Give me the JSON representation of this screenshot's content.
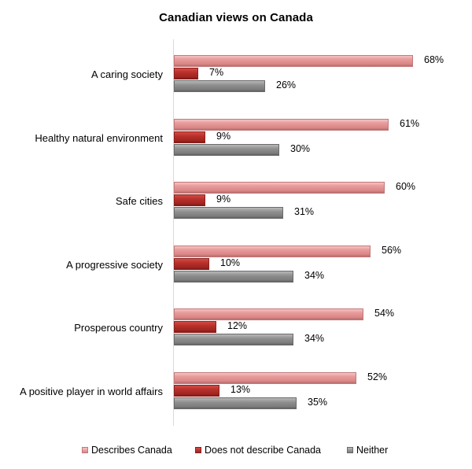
{
  "chart_data": {
    "type": "bar",
    "orientation": "horizontal",
    "title": "Canadian views on Canada",
    "xlabel": "",
    "ylabel": "",
    "xlim": [
      0,
      100
    ],
    "grid": false,
    "legend_position": "bottom",
    "categories": [
      "A caring society",
      "Healthy natural environment",
      "Safe cities",
      "A progressive society",
      "Prosperous country",
      "A positive player in world affairs"
    ],
    "series": [
      {
        "name": "Describes Canada",
        "color": "#e89a9a",
        "values": [
          68,
          61,
          60,
          56,
          54,
          52
        ],
        "labels": [
          "68%",
          "61%",
          "60%",
          "56%",
          "54%",
          "52%"
        ]
      },
      {
        "name": "Does not describe Canada",
        "color": "#b8302b",
        "values": [
          7,
          9,
          9,
          10,
          12,
          13
        ],
        "labels": [
          "7%",
          "9%",
          "9%",
          "10%",
          "12%",
          "13%"
        ]
      },
      {
        "name": "Neither",
        "color": "#8f8f8f",
        "values": [
          26,
          30,
          31,
          34,
          34,
          35
        ],
        "labels": [
          "26%",
          "30%",
          "31%",
          "34%",
          "34%",
          "35%"
        ]
      }
    ]
  }
}
